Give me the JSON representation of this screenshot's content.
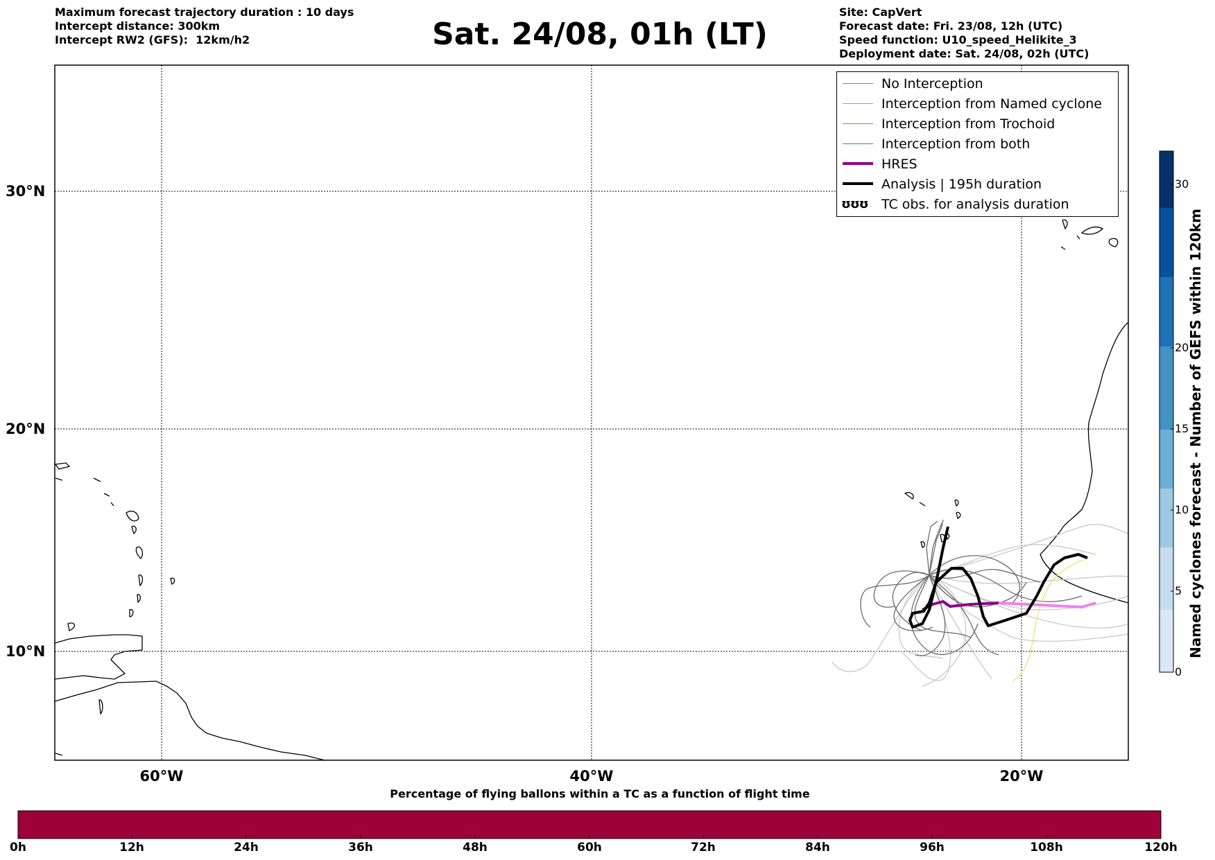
{
  "header_left": [
    "Maximum forecast trajectory duration : 10 days",
    "Intercept distance: 300km",
    "Intercept RW2 (GFS):  12km/h2"
  ],
  "header_right": [
    "Site: CapVert",
    "Forecast date: Fri. 23/08, 12h (UTC)",
    "Speed function: U10_speed_Helikite_3",
    "Deployment date: Sat. 24/08, 02h (UTC)"
  ],
  "title": "Sat. 24/08, 01h (LT)",
  "map": {
    "lat_ticks": [
      "30°N",
      "20°N",
      "10°N"
    ],
    "lon_ticks": [
      "60°W",
      "40°W",
      "20°W"
    ],
    "grid": true
  },
  "legend": [
    {
      "label": "No Interception",
      "color": "#808080",
      "kind": "line",
      "width": 1
    },
    {
      "label": "Interception from Named cyclone",
      "color": "#ff7f50",
      "kind": "line",
      "width": 1.5
    },
    {
      "label": "Interception from Trochoid",
      "color": "#9a8c3a",
      "kind": "line",
      "width": 1.5
    },
    {
      "label": "Interception from both",
      "color": "#2ca02c",
      "kind": "line",
      "width": 1.5
    },
    {
      "label": "HRES",
      "color": "#8b008b",
      "kind": "line",
      "width": 4
    },
    {
      "label": "Analysis | 195h duration",
      "color": "#000000",
      "kind": "line",
      "width": 4
    },
    {
      "label": "TC obs. for analysis duration",
      "color": "#000000",
      "kind": "glyph",
      "glyph": "ʊʊʊ"
    }
  ],
  "colorbar_right": {
    "label": "Named cyclones forecast - Number of GEFS within 120km",
    "ticks": [
      "0",
      "5",
      "10",
      "15",
      "20",
      "30"
    ],
    "colors": [
      "#dbe7f5",
      "#c6dbef",
      "#9ecae1",
      "#6baed6",
      "#4292c6",
      "#2171b5",
      "#08519c",
      "#08306b"
    ]
  },
  "colorbar_bottom": {
    "title": "Percentage of flying ballons within a TC as a function of flight time",
    "ticks": [
      "0h",
      "12h",
      "24h",
      "36h",
      "48h",
      "60h",
      "72h",
      "84h",
      "96h",
      "108h",
      "120h"
    ],
    "color": "#9e003a"
  }
}
